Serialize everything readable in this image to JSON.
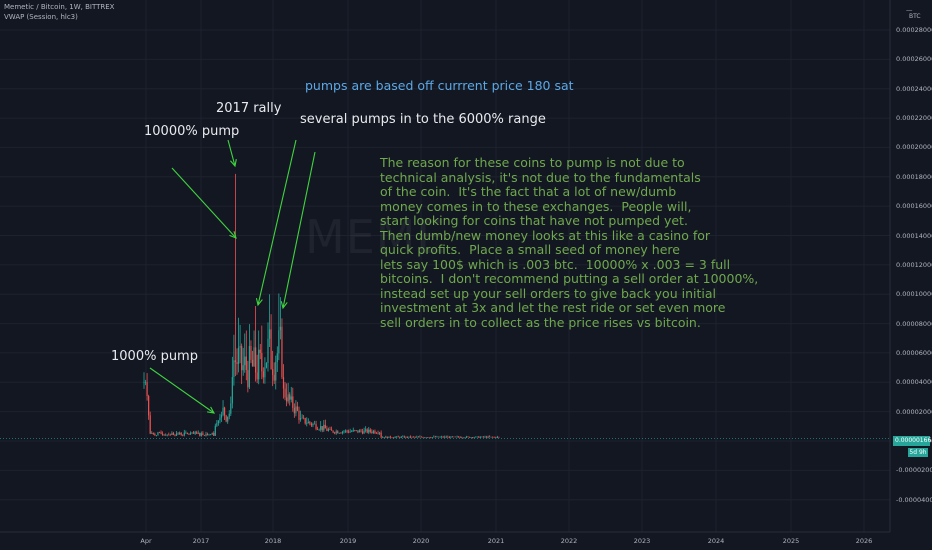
{
  "header": {
    "symbol_line": "Memetic / Bitcoin, 1W, BITTREX",
    "indicator_line": "VWAP (Session, hlc3)"
  },
  "price_axis": {
    "currency_label": "BTC",
    "ticks": [
      "0.00028000",
      "0.00026000",
      "0.00024000",
      "0.00022000",
      "0.00020000",
      "0.00018000",
      "0.00016000",
      "0.00014000",
      "0.00012000",
      "0.00010000",
      "0.00008000",
      "0.00006000",
      "0.00004000",
      "0.00002000",
      "0.00000000",
      "-0.00002000",
      "-0.00004000"
    ],
    "current_price": "0.00000166",
    "countdown": "5d 9h"
  },
  "time_axis": {
    "ticks": [
      "Apr",
      "2017",
      "2018",
      "2019",
      "2020",
      "2021",
      "2022",
      "2023",
      "2024",
      "2025",
      "2026"
    ]
  },
  "watermark": "MEME",
  "annotations": {
    "top_note": "pumps are based off currrent price 180 sat",
    "rally_2017": "2017 rally",
    "pump_10000": "10000% pump",
    "pumps_6000": "several pumps in to the 6000% range",
    "pump_1000": "1000% pump",
    "explanation": "The reason for these coins to pump is not due to\ntechnical analysis, it's not due to the fundamentals\nof the coin.  It's the fact that a lot of new/dumb\nmoney comes in to these exchanges.  People will,\nstart looking for coins that have not pumped yet.\nThen dumb/new money looks at this like a casino for\nquick profits.  Place a small seed of money here\nlets say 100$ which is .003 btc.  10000% x .003 = 3 full\nbitcoins.  I don't recommend putting a sell order at 10000%,\ninstead set up your sell orders to give back you initial\ninvestment at 3x and let the rest ride or set even more\nsell orders in to collect as the price rises vs bitcoin."
  },
  "colors": {
    "background": "#131722",
    "up": "#26a69a",
    "down": "#ef5350",
    "arrow": "#3fd43f",
    "grid": "#1e222d",
    "text_green": "#6fa84d",
    "text_blue": "#5ba8e6"
  },
  "chart_data": {
    "type": "candlestick",
    "title": "Memetic / Bitcoin, 1W, BITTREX",
    "ylabel": "BTC",
    "ylim": [
      -5e-05,
      0.0003
    ],
    "x_ticks": [
      "Apr",
      "2017",
      "2018",
      "2019",
      "2020",
      "2021",
      "2022",
      "2023",
      "2024",
      "2025",
      "2026"
    ],
    "grid": true,
    "series": [
      {
        "name": "Memetic / Bitcoin",
        "x": [
          "2016-04",
          "2016-05",
          "2016-07",
          "2016-09",
          "2016-11",
          "2017-01",
          "2017-02",
          "2017-03",
          "2017-04",
          "2017-05",
          "2017-06",
          "2017-07",
          "2017-08",
          "2017-09",
          "2017-10",
          "2017-11",
          "2017-12",
          "2018-01",
          "2018-02",
          "2018-03",
          "2018-04",
          "2018-05",
          "2018-06",
          "2018-08",
          "2018-10",
          "2019-01",
          "2019-04",
          "2019-07",
          "2019-10",
          "2020-01",
          "2020-04",
          "2020-07",
          "2020-10",
          "2021-01"
        ],
        "close": [
          4.5e-05,
          6e-06,
          4e-06,
          3e-06,
          3e-06,
          3e-06,
          4e-06,
          8e-06,
          1.8e-05,
          5e-05,
          6e-05,
          4e-05,
          5.5e-05,
          4.5e-05,
          5e-05,
          6.5e-05,
          8e-05,
          7e-05,
          5.5e-05,
          4e-05,
          3e-05,
          2e-05,
          1.2e-05,
          9e-06,
          7e-06,
          5e-06,
          4e-06,
          4e-06,
          3e-06,
          2e-06,
          2e-06,
          2e-06,
          2e-06,
          1.66e-06
        ],
        "high": [
          4.5e-05,
          1e-05,
          6e-06,
          5e-06,
          4e-06,
          4e-06,
          6e-06,
          1.2e-05,
          2.2e-05,
          0.000182,
          8.5e-05,
          7e-05,
          9e-05,
          6.5e-05,
          7e-05,
          0.0001,
          0.0001,
          9e-05,
          7e-05,
          5e-05,
          4e-05,
          2.5e-05,
          1.6e-05,
          1.1e-05,
          9e-06,
          7e-06,
          5e-06,
          5e-06,
          4e-06,
          3e-06,
          3e-06,
          3e-06,
          3e-06,
          3e-06
        ]
      },
      {
        "name": "VWAP (Session, hlc3)",
        "note": "drawn as thin line tracking price"
      }
    ]
  }
}
